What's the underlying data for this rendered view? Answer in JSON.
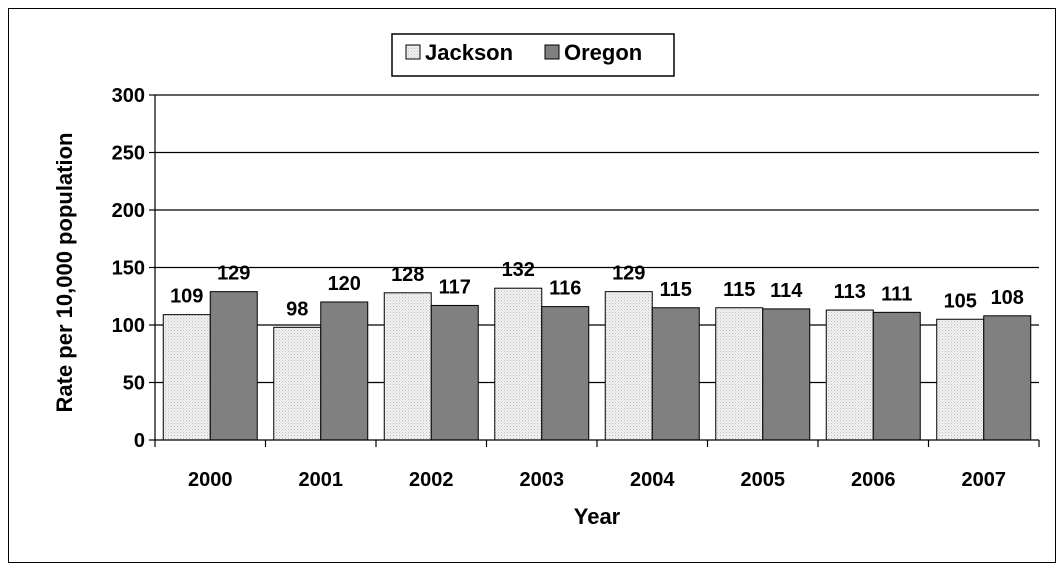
{
  "chart_data": {
    "type": "bar",
    "categories": [
      "2000",
      "2001",
      "2002",
      "2003",
      "2004",
      "2005",
      "2006",
      "2007"
    ],
    "series": [
      {
        "name": "Jackson",
        "values": [
          109,
          98,
          128,
          132,
          129,
          115,
          113,
          105
        ],
        "color": "#e8e8e8"
      },
      {
        "name": "Oregon",
        "values": [
          129,
          120,
          117,
          116,
          115,
          114,
          111,
          108
        ],
        "color": "#808080"
      }
    ],
    "xlabel": "Year",
    "ylabel": "Rate per 10,000 population",
    "ylim": [
      0,
      300
    ],
    "yticks": [
      0,
      50,
      100,
      150,
      200,
      250,
      300
    ],
    "grid": true,
    "legend_position": "top-center",
    "data_labels": true
  }
}
